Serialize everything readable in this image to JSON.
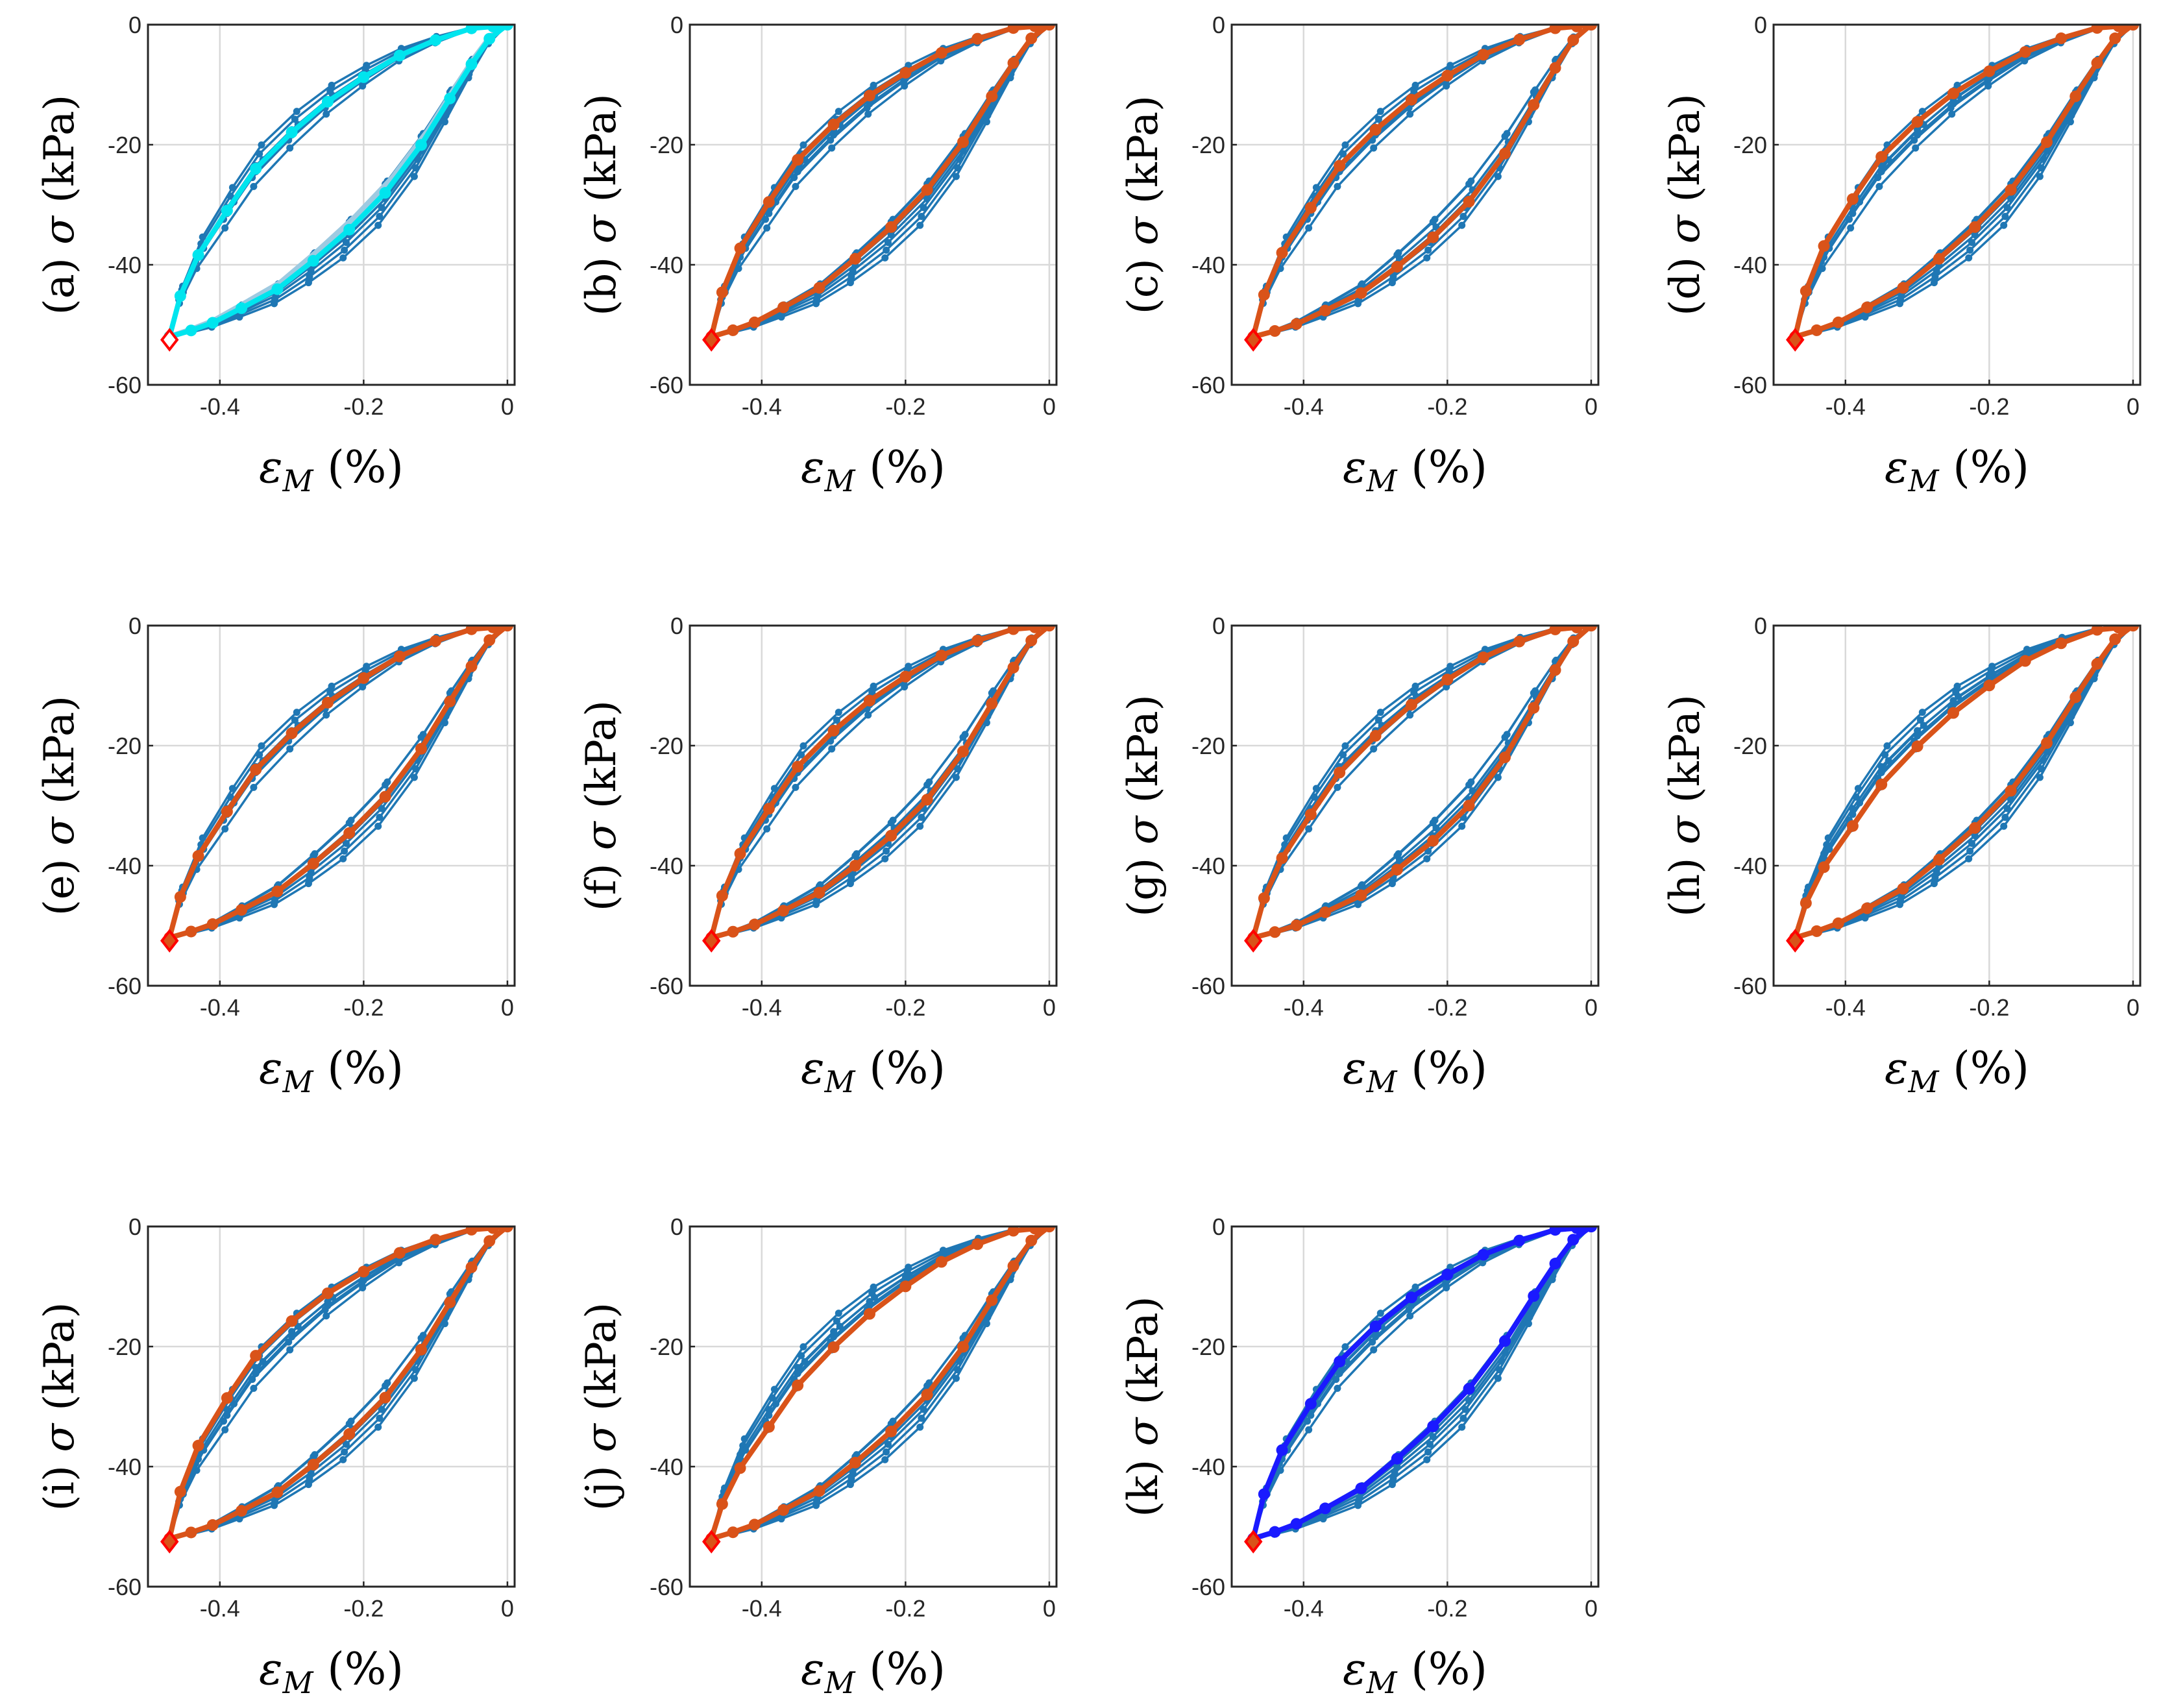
{
  "figure": {
    "colors": {
      "background": "#1f77b4",
      "highlight": "#d95319",
      "marker_edge": "#ff0000",
      "marker_fill": "#d95319",
      "grid": "#d9d9d9"
    }
  },
  "chart_data": [
    {
      "panel": "(a)",
      "type": "line",
      "highlight_style": "cyan",
      "highlight_color": "#00e5ee",
      "secondary_color": "#9ecae1",
      "marker_fill": "#ffffff"
    },
    {
      "panel": "(b)",
      "type": "line",
      "highlight_style": "orange"
    },
    {
      "panel": "(c)",
      "type": "line",
      "highlight_style": "orange"
    },
    {
      "panel": "(d)",
      "type": "line",
      "highlight_style": "orange"
    },
    {
      "panel": "(e)",
      "type": "line",
      "highlight_style": "orange"
    },
    {
      "panel": "(f)",
      "type": "line",
      "highlight_style": "orange"
    },
    {
      "panel": "(g)",
      "type": "line",
      "highlight_style": "orange"
    },
    {
      "panel": "(h)",
      "type": "line",
      "highlight_style": "orange"
    },
    {
      "panel": "(i)",
      "type": "line",
      "highlight_style": "orange"
    },
    {
      "panel": "(j)",
      "type": "line",
      "highlight_style": "orange"
    },
    {
      "panel": "(k)",
      "type": "line",
      "highlight_style": "blue",
      "highlight_color": "#1a1aff"
    }
  ],
  "shared_axes": {
    "ylabel_prefix_symbol": "σ",
    "ylabel_unit": "(kPa)",
    "xlabel_symbol": "ε",
    "xlabel_subscript": "M",
    "xlabel_unit": "(%)",
    "xlim": [
      -0.5,
      0.01
    ],
    "ylim": [
      -60,
      0
    ],
    "xticks": [
      -0.4,
      -0.2,
      0
    ],
    "xtick_labels": [
      "-0.4",
      "-0.2",
      "0"
    ],
    "yticks": [
      -60,
      -40,
      -20,
      0
    ],
    "ytick_labels": [
      "-60",
      "-40",
      "-20",
      "0"
    ],
    "grid": true
  },
  "loop_template": {
    "description": "hysteresis loop: unloading (upper) branch then reloading (lower) branch",
    "upper_branch": [
      [
        0.0,
        0.0
      ],
      [
        -0.02,
        -0.3
      ],
      [
        -0.05,
        -0.6
      ],
      [
        -0.1,
        -2.5
      ],
      [
        -0.15,
        -5.0
      ],
      [
        -0.2,
        -8.5
      ],
      [
        -0.25,
        -12.5
      ],
      [
        -0.3,
        -17.5
      ],
      [
        -0.35,
        -23.5
      ],
      [
        -0.39,
        -30.5
      ],
      [
        -0.43,
        -38.0
      ],
      [
        -0.455,
        -45.0
      ],
      [
        -0.47,
        -52.0
      ]
    ],
    "lower_branch": [
      [
        -0.47,
        -52.0
      ],
      [
        -0.44,
        -51.0
      ],
      [
        -0.41,
        -49.8
      ],
      [
        -0.37,
        -47.5
      ],
      [
        -0.32,
        -44.5
      ],
      [
        -0.27,
        -40.0
      ],
      [
        -0.22,
        -35.0
      ],
      [
        -0.17,
        -29.0
      ],
      [
        -0.12,
        -21.0
      ],
      [
        -0.08,
        -13.0
      ],
      [
        -0.05,
        -7.0
      ],
      [
        -0.025,
        -2.5
      ],
      [
        0.0,
        0.0
      ]
    ]
  },
  "background_cycles": [
    {
      "du": 0.0,
      "dl": 0.0,
      "dx": 0.0
    },
    {
      "du": 2.0,
      "dl": -1.5,
      "dx": 0.005
    },
    {
      "du": -2.0,
      "dl": 1.5,
      "dx": -0.005
    },
    {
      "du": 3.5,
      "dl": -3.0,
      "dx": 0.008
    },
    {
      "du": -3.5,
      "dl": 3.0,
      "dx": -0.003
    },
    {
      "du": 1.0,
      "dl": -4.5,
      "dx": 0.01
    },
    {
      "du": -1.0,
      "dl": 2.5,
      "dx": 0.0
    }
  ],
  "highlight_variants": [
    {
      "du": -0.5,
      "dl": 1.0
    },
    {
      "du": 1.0,
      "dl": 1.5
    },
    {
      "du": 0.0,
      "dl": -0.5
    },
    {
      "du": 1.5,
      "dl": 1.5
    },
    {
      "du": -0.5,
      "dl": 0.5
    },
    {
      "du": 0.0,
      "dl": 0.0
    },
    {
      "du": -1.0,
      "dl": -1.0
    },
    {
      "du": -3.0,
      "dl": 1.5
    },
    {
      "du": 2.0,
      "dl": 0.5
    },
    {
      "du": -3.0,
      "dl": 1.0
    },
    {
      "du": 1.0,
      "dl": 2.0
    }
  ],
  "peak_marker": {
    "x": -0.47,
    "y": -52.5,
    "shape": "diamond"
  }
}
